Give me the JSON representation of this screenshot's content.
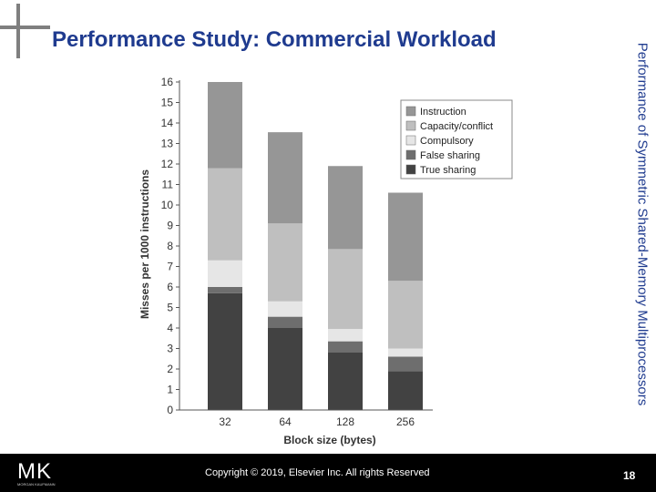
{
  "slide": {
    "title": "Performance Study:  Commercial Workload",
    "side_title": "Performance of Symmetric Shared-Memory Multiprocessors",
    "copyright": "Copyright © 2019, Elsevier Inc. All rights Reserved",
    "page_number": "18",
    "logo_letters": "MK",
    "logo_subtext": "MORGAN KAUFMANN"
  },
  "colors": {
    "title": "#1f3b8f",
    "footer": "#000000",
    "instruction": "#969696",
    "capacity_conflict": "#bfbfbf",
    "compulsory": "#e6e6e6",
    "false_sharing": "#6e6e6e",
    "true_sharing": "#424242"
  },
  "chart_data": {
    "type": "bar",
    "stacked": true,
    "categories": [
      "32",
      "64",
      "128",
      "256"
    ],
    "xlabel": "Block size (bytes)",
    "ylabel": "Misses per 1000 instructions",
    "ylim": [
      0,
      16
    ],
    "yticks": [
      0,
      1,
      2,
      3,
      4,
      5,
      6,
      7,
      8,
      9,
      10,
      11,
      12,
      13,
      14,
      15,
      16
    ],
    "grid": false,
    "legend_position": "top-right",
    "series": [
      {
        "name": "True sharing",
        "values": [
          5.7,
          4.0,
          2.8,
          1.9
        ]
      },
      {
        "name": "False sharing",
        "values": [
          0.3,
          0.55,
          0.55,
          0.7
        ]
      },
      {
        "name": "Compulsory",
        "values": [
          1.3,
          0.75,
          0.6,
          0.4
        ]
      },
      {
        "name": "Capacity/conflict",
        "values": [
          4.5,
          3.8,
          3.9,
          3.3
        ]
      },
      {
        "name": "Instruction",
        "values": [
          4.2,
          4.45,
          4.05,
          4.3
        ]
      }
    ],
    "legend_order": [
      "Instruction",
      "Capacity/conflict",
      "Compulsory",
      "False sharing",
      "True sharing"
    ]
  }
}
